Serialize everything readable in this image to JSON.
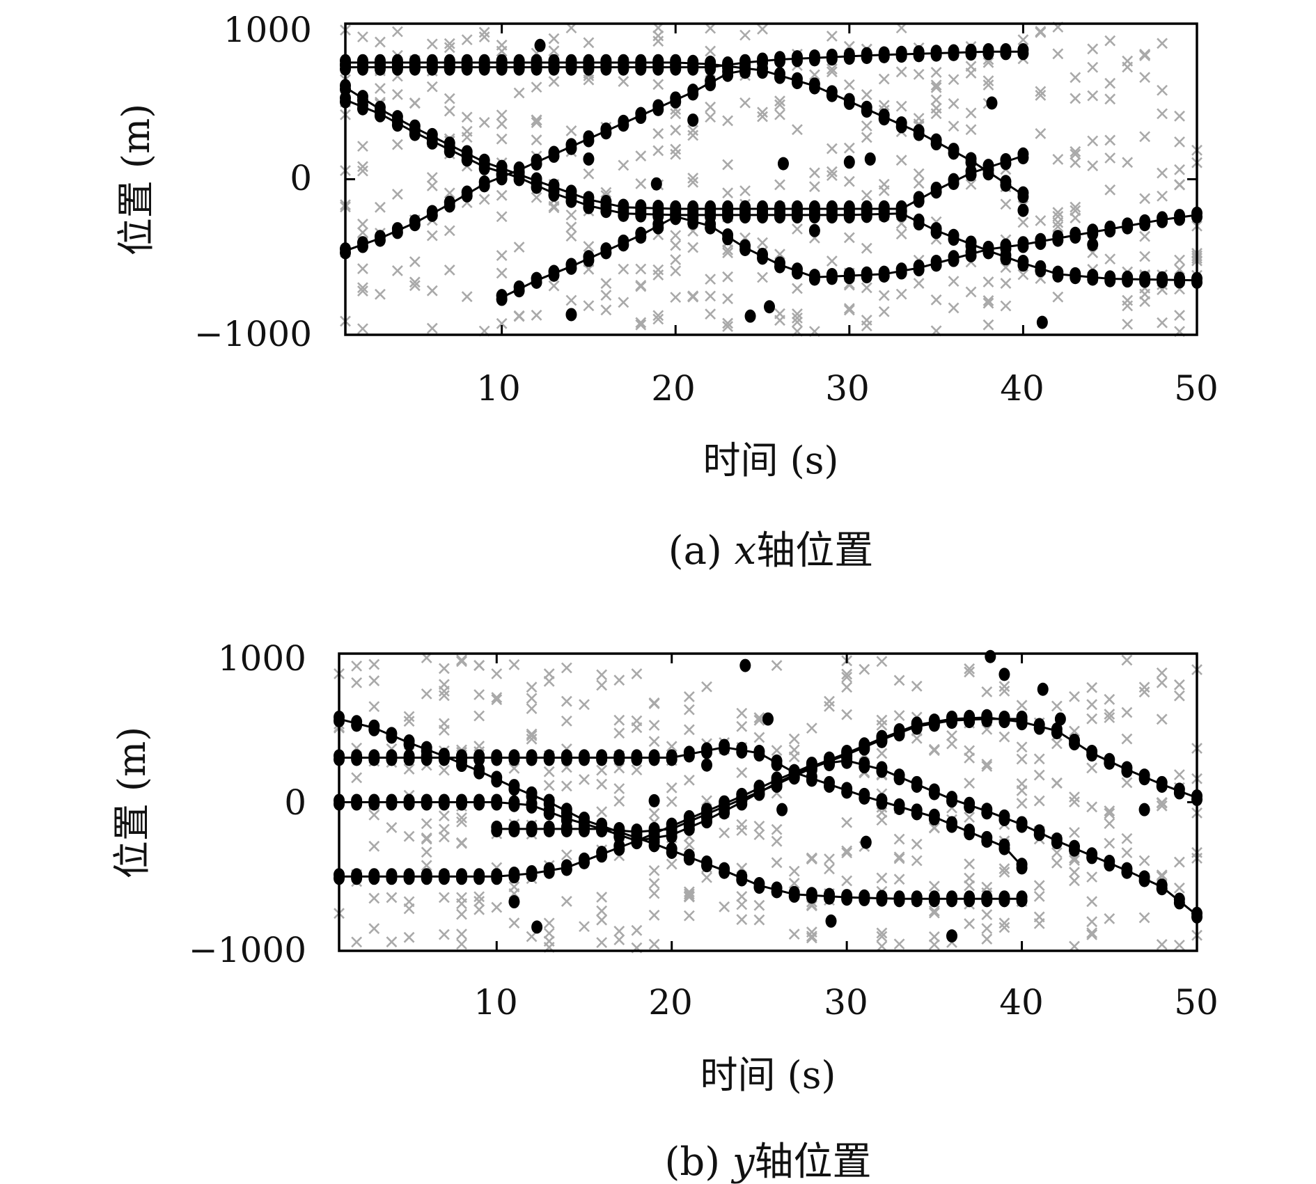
{
  "chart_data": [
    {
      "type": "scatter",
      "panel": "a",
      "caption": {
        "prefix": "(a) ",
        "var": "x",
        "suffix": "轴位置"
      },
      "xlabel": "时间 (s)",
      "ylabel": "位置 (m)",
      "xlim": [
        1,
        50
      ],
      "ylim": [
        -1000,
        1000
      ],
      "xticks": [
        "10",
        "20",
        "30",
        "40",
        "50"
      ],
      "yticks": [
        "1000",
        "0",
        "−1000"
      ],
      "grid": false,
      "legend": "none",
      "colors": {
        "tracks": "#000000",
        "clutter": "#a9a9a9"
      },
      "series": [
        {
          "marker": "circle-line",
          "points": [
            [
              1,
              750
            ],
            [
              5,
              750
            ],
            [
              10,
              750
            ],
            [
              15,
              750
            ],
            [
              20,
              750
            ],
            [
              22,
              740
            ],
            [
              25,
              700
            ],
            [
              28,
              600
            ],
            [
              31,
              450
            ],
            [
              34,
              300
            ],
            [
              37,
              120
            ],
            [
              40,
              -100
            ]
          ]
        },
        {
          "marker": "circle-line",
          "points": [
            [
              1,
              720
            ],
            [
              5,
              720
            ],
            [
              10,
              720
            ],
            [
              15,
              720
            ],
            [
              20,
              720
            ],
            [
              22,
              720
            ],
            [
              24,
              750
            ],
            [
              26,
              770
            ],
            [
              28,
              780
            ],
            [
              30,
              790
            ],
            [
              32,
              800
            ],
            [
              35,
              810
            ],
            [
              38,
              820
            ],
            [
              40,
              820
            ]
          ]
        },
        {
          "marker": "circle-line",
          "points": [
            [
              1,
              590
            ],
            [
              3,
              450
            ],
            [
              5,
              330
            ],
            [
              7,
              220
            ],
            [
              9,
              110
            ],
            [
              11,
              30
            ],
            [
              13,
              -50
            ],
            [
              15,
              -130
            ],
            [
              17,
              -180
            ],
            [
              20,
              -190
            ],
            [
              25,
              -190
            ],
            [
              30,
              -190
            ],
            [
              33,
              -190
            ],
            [
              35,
              -70
            ],
            [
              37,
              40
            ],
            [
              40,
              150
            ]
          ]
        },
        {
          "marker": "circle-line",
          "points": [
            [
              1,
              510
            ],
            [
              3,
              420
            ],
            [
              5,
              300
            ],
            [
              7,
              190
            ],
            [
              9,
              80
            ],
            [
              11,
              10
            ],
            [
              13,
              -90
            ],
            [
              15,
              -170
            ],
            [
              17,
              -220
            ],
            [
              20,
              -230
            ],
            [
              25,
              -230
            ],
            [
              30,
              -230
            ],
            [
              33,
              -220
            ],
            [
              35,
              -330
            ],
            [
              38,
              -460
            ],
            [
              40,
              -540
            ],
            [
              42,
              -610
            ],
            [
              45,
              -640
            ],
            [
              50,
              -650
            ]
          ]
        },
        {
          "marker": "circle-line",
          "points": [
            [
              1,
              -460
            ],
            [
              3,
              -380
            ],
            [
              5,
              -280
            ],
            [
              7,
              -160
            ],
            [
              9,
              -30
            ],
            [
              11,
              60
            ],
            [
              13,
              160
            ],
            [
              15,
              260
            ],
            [
              17,
              360
            ],
            [
              19,
              460
            ],
            [
              21,
              560
            ],
            [
              23,
              680
            ],
            [
              24,
              700
            ]
          ]
        },
        {
          "marker": "circle-line",
          "points": [
            [
              10,
              -760
            ],
            [
              12,
              -650
            ],
            [
              14,
              -560
            ],
            [
              16,
              -460
            ],
            [
              18,
              -360
            ],
            [
              20,
              -240
            ],
            [
              22,
              -300
            ],
            [
              24,
              -440
            ],
            [
              26,
              -550
            ],
            [
              28,
              -630
            ],
            [
              30,
              -620
            ],
            [
              32,
              -610
            ],
            [
              34,
              -570
            ],
            [
              36,
              -510
            ],
            [
              38,
              -450
            ],
            [
              40,
              -420
            ],
            [
              42,
              -380
            ],
            [
              44,
              -340
            ],
            [
              46,
              -300
            ],
            [
              48,
              -260
            ],
            [
              50,
              -230
            ]
          ]
        }
      ],
      "clutter_count": 430,
      "false_detections": [
        [
          12.2,
          860
        ],
        [
          14,
          -870
        ],
        [
          24.3,
          -880
        ],
        [
          25.4,
          -820
        ],
        [
          21,
          380
        ],
        [
          15,
          130
        ],
        [
          26.2,
          100
        ],
        [
          30,
          110
        ],
        [
          31.2,
          130
        ],
        [
          38.2,
          490
        ],
        [
          41.1,
          -920
        ],
        [
          18.9,
          -30
        ],
        [
          28,
          -330
        ],
        [
          40,
          -200
        ],
        [
          44,
          -420
        ]
      ]
    },
    {
      "type": "scatter",
      "panel": "b",
      "caption": {
        "prefix": "(b) ",
        "var": "y",
        "suffix": "轴位置"
      },
      "xlabel": "时间 (s)",
      "ylabel": "位置 (m)",
      "xlim": [
        1,
        50
      ],
      "ylim": [
        -1000,
        1000
      ],
      "xticks": [
        "10",
        "20",
        "30",
        "40",
        "50"
      ],
      "yticks": [
        "1000",
        "0",
        "−1000"
      ],
      "grid": false,
      "legend": "none",
      "colors": {
        "tracks": "#000000",
        "clutter": "#a9a9a9"
      },
      "series": [
        {
          "marker": "circle-line",
          "points": [
            [
              1,
              560
            ],
            [
              3,
              500
            ],
            [
              5,
              400
            ],
            [
              7,
              310
            ],
            [
              9,
              210
            ],
            [
              11,
              100
            ],
            [
              13,
              0
            ],
            [
              15,
              -120
            ],
            [
              17,
              -200
            ],
            [
              19,
              -280
            ],
            [
              21,
              -370
            ],
            [
              23,
              -460
            ],
            [
              25,
              -560
            ],
            [
              27,
              -620
            ],
            [
              30,
              -640
            ],
            [
              33,
              -650
            ],
            [
              36,
              -650
            ],
            [
              40,
              -650
            ]
          ]
        },
        {
          "marker": "circle-line",
          "points": [
            [
              1,
              300
            ],
            [
              5,
              300
            ],
            [
              10,
              300
            ],
            [
              15,
              300
            ],
            [
              20,
              300
            ],
            [
              23,
              370
            ],
            [
              25,
              330
            ],
            [
              27,
              200
            ],
            [
              29,
              120
            ],
            [
              31,
              40
            ],
            [
              33,
              -30
            ],
            [
              35,
              -100
            ],
            [
              37,
              -200
            ],
            [
              39,
              -300
            ],
            [
              40,
              -430
            ]
          ]
        },
        {
          "marker": "circle-line",
          "points": [
            [
              1,
              0
            ],
            [
              5,
              0
            ],
            [
              10,
              0
            ],
            [
              12,
              -20
            ],
            [
              14,
              -110
            ],
            [
              16,
              -180
            ],
            [
              18,
              -260
            ],
            [
              20,
              -220
            ],
            [
              22,
              -120
            ],
            [
              24,
              0
            ],
            [
              26,
              130
            ],
            [
              28,
              240
            ],
            [
              30,
              330
            ],
            [
              32,
              430
            ],
            [
              34,
              520
            ],
            [
              36,
              560
            ],
            [
              38,
              570
            ],
            [
              40,
              540
            ],
            [
              42,
              480
            ],
            [
              44,
              330
            ],
            [
              46,
              220
            ],
            [
              48,
              120
            ],
            [
              50,
              30
            ]
          ]
        },
        {
          "marker": "circle-line",
          "points": [
            [
              1,
              -500
            ],
            [
              5,
              -500
            ],
            [
              10,
              -500
            ],
            [
              12,
              -480
            ],
            [
              14,
              -440
            ],
            [
              16,
              -350
            ],
            [
              18,
              -260
            ],
            [
              20,
              -160
            ],
            [
              22,
              -60
            ],
            [
              24,
              40
            ],
            [
              26,
              150
            ],
            [
              28,
              250
            ],
            [
              30,
              280
            ],
            [
              32,
              220
            ],
            [
              34,
              120
            ],
            [
              36,
              20
            ],
            [
              38,
              -60
            ],
            [
              40,
              -150
            ],
            [
              42,
              -260
            ],
            [
              44,
              -360
            ],
            [
              46,
              -460
            ],
            [
              48,
              -570
            ],
            [
              50,
              -760
            ]
          ]
        },
        {
          "marker": "circle-line",
          "points": [
            [
              10,
              -180
            ],
            [
              13,
              -180
            ],
            [
              16,
              -180
            ],
            [
              18,
              -200
            ],
            [
              20,
              -180
            ],
            [
              22,
              -80
            ],
            [
              24,
              20
            ],
            [
              26,
              120
            ],
            [
              28,
              230
            ],
            [
              30,
              320
            ],
            [
              32,
              420
            ],
            [
              34,
              510
            ],
            [
              36,
              550
            ],
            [
              38,
              560
            ],
            [
              40,
              560
            ]
          ]
        }
      ],
      "clutter_count": 430,
      "false_detections": [
        [
          24.2,
          920
        ],
        [
          25.5,
          560
        ],
        [
          38.2,
          980
        ],
        [
          39,
          860
        ],
        [
          41.2,
          760
        ],
        [
          42.2,
          560
        ],
        [
          11,
          -670
        ],
        [
          12.3,
          -840
        ],
        [
          29.1,
          -800
        ],
        [
          36,
          -900
        ],
        [
          31.1,
          -270
        ],
        [
          40,
          -140
        ],
        [
          19,
          10
        ],
        [
          47,
          -50
        ],
        [
          22,
          250
        ],
        [
          26.3,
          -50
        ]
      ]
    }
  ]
}
